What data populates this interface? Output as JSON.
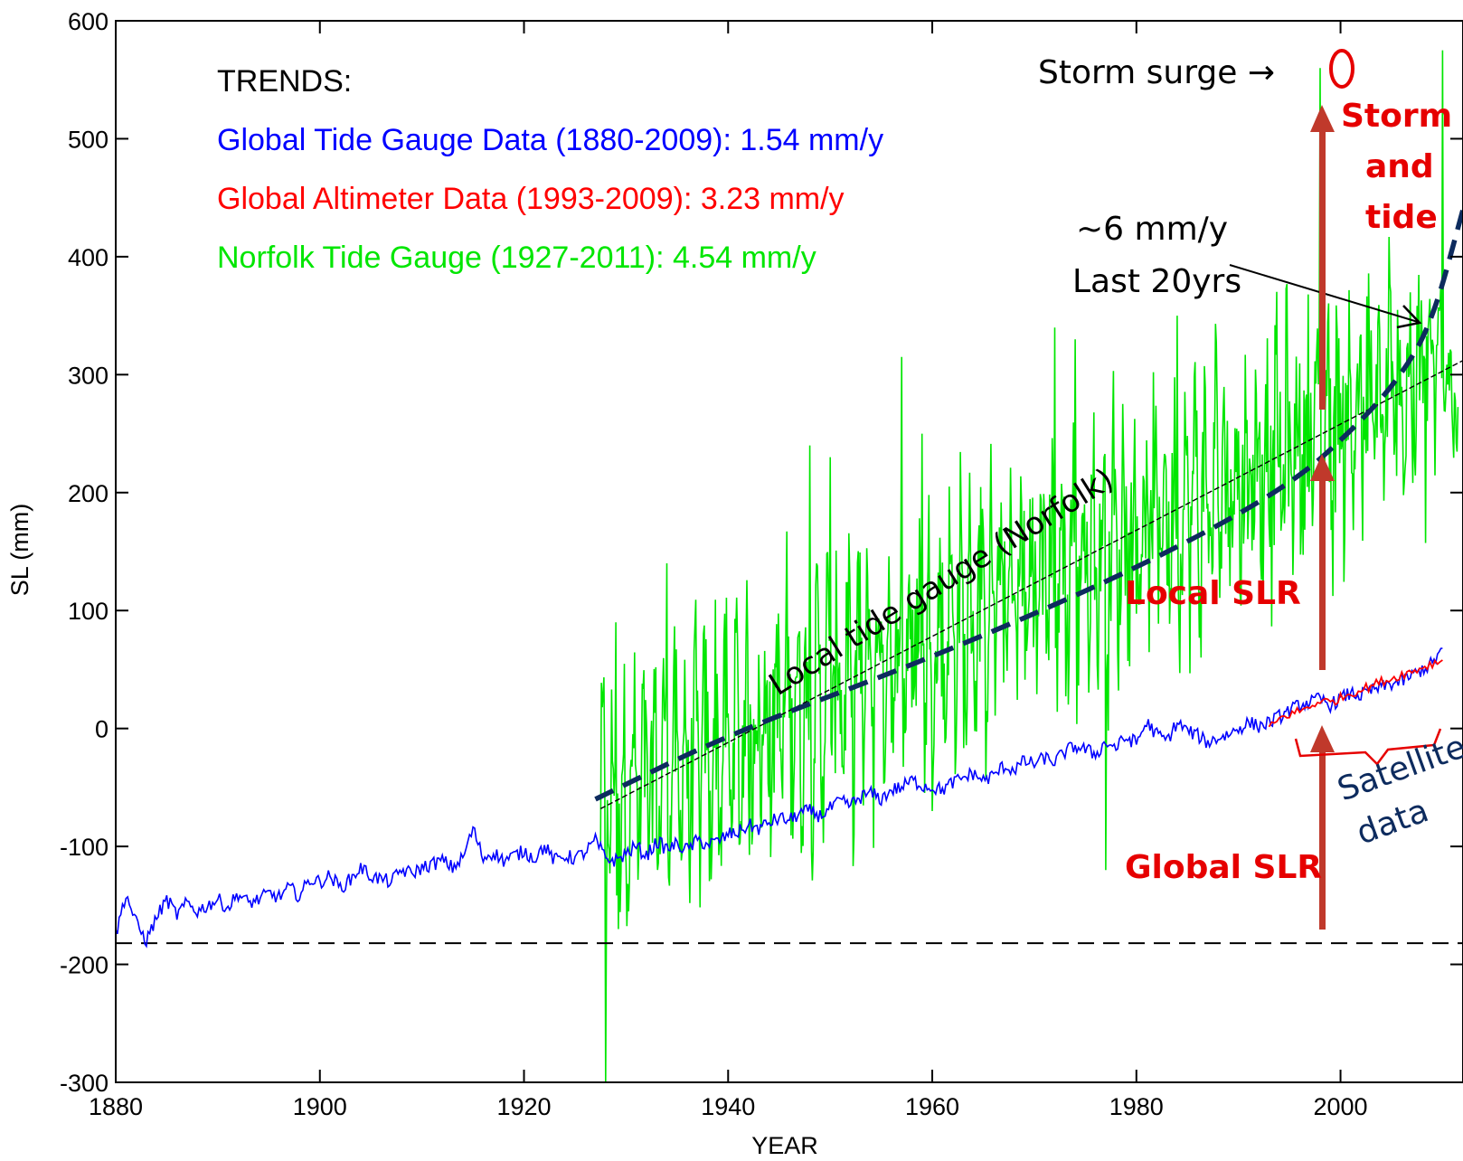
{
  "chart_data": {
    "type": "line",
    "xlabel": "YEAR",
    "ylabel": "SL (mm)",
    "xlim": [
      1880,
      2012
    ],
    "ylim": [
      -300,
      600
    ],
    "x_ticks": [
      1880,
      1900,
      1920,
      1940,
      1960,
      1980,
      2000
    ],
    "y_ticks": [
      600,
      500,
      400,
      300,
      200,
      100,
      0,
      -100,
      -200,
      -300
    ],
    "grid": false,
    "legend_title": "TRENDS:",
    "legend_position": "top-left",
    "series": [
      {
        "name": "Global Tide Gauge Data (1880-2009): 1.54 mm/y",
        "color": "#0000ff",
        "points": [
          [
            1880,
            -175
          ],
          [
            1881,
            -140
          ],
          [
            1882,
            -165
          ],
          [
            1883,
            -180
          ],
          [
            1884,
            -160
          ],
          [
            1885,
            -145
          ],
          [
            1886,
            -158
          ],
          [
            1887,
            -148
          ],
          [
            1888,
            -155
          ],
          [
            1889,
            -150
          ],
          [
            1890,
            -145
          ],
          [
            1891,
            -152
          ],
          [
            1892,
            -140
          ],
          [
            1893,
            -148
          ],
          [
            1894,
            -145
          ],
          [
            1895,
            -140
          ],
          [
            1896,
            -143
          ],
          [
            1897,
            -135
          ],
          [
            1898,
            -142
          ],
          [
            1899,
            -128
          ],
          [
            1900,
            -130
          ],
          [
            1901,
            -125
          ],
          [
            1902,
            -135
          ],
          [
            1903,
            -128
          ],
          [
            1904,
            -118
          ],
          [
            1905,
            -125
          ],
          [
            1906,
            -128
          ],
          [
            1907,
            -130
          ],
          [
            1908,
            -120
          ],
          [
            1909,
            -123
          ],
          [
            1910,
            -118
          ],
          [
            1911,
            -115
          ],
          [
            1912,
            -112
          ],
          [
            1913,
            -118
          ],
          [
            1914,
            -110
          ],
          [
            1915,
            -85
          ],
          [
            1916,
            -110
          ],
          [
            1917,
            -105
          ],
          [
            1918,
            -112
          ],
          [
            1919,
            -108
          ],
          [
            1920,
            -104
          ],
          [
            1921,
            -110
          ],
          [
            1922,
            -100
          ],
          [
            1923,
            -112
          ],
          [
            1924,
            -108
          ],
          [
            1925,
            -110
          ],
          [
            1926,
            -105
          ],
          [
            1927,
            -95
          ],
          [
            1928,
            -110
          ],
          [
            1929,
            -112
          ],
          [
            1930,
            -106
          ],
          [
            1931,
            -100
          ],
          [
            1932,
            -108
          ],
          [
            1933,
            -96
          ],
          [
            1934,
            -102
          ],
          [
            1935,
            -98
          ],
          [
            1936,
            -103
          ],
          [
            1937,
            -95
          ],
          [
            1938,
            -98
          ],
          [
            1939,
            -96
          ],
          [
            1940,
            -90
          ],
          [
            1941,
            -88
          ],
          [
            1942,
            -82
          ],
          [
            1943,
            -85
          ],
          [
            1944,
            -80
          ],
          [
            1945,
            -76
          ],
          [
            1946,
            -78
          ],
          [
            1947,
            -72
          ],
          [
            1948,
            -70
          ],
          [
            1949,
            -74
          ],
          [
            1950,
            -68
          ],
          [
            1951,
            -62
          ],
          [
            1952,
            -65
          ],
          [
            1953,
            -58
          ],
          [
            1954,
            -55
          ],
          [
            1955,
            -60
          ],
          [
            1956,
            -52
          ],
          [
            1957,
            -50
          ],
          [
            1958,
            -44
          ],
          [
            1959,
            -48
          ],
          [
            1960,
            -50
          ],
          [
            1961,
            -52
          ],
          [
            1962,
            -46
          ],
          [
            1963,
            -42
          ],
          [
            1964,
            -38
          ],
          [
            1965,
            -44
          ],
          [
            1966,
            -40
          ],
          [
            1967,
            -32
          ],
          [
            1968,
            -35
          ],
          [
            1969,
            -28
          ],
          [
            1970,
            -30
          ],
          [
            1971,
            -25
          ],
          [
            1972,
            -28
          ],
          [
            1973,
            -20
          ],
          [
            1974,
            -15
          ],
          [
            1975,
            -18
          ],
          [
            1976,
            -22
          ],
          [
            1977,
            -12
          ],
          [
            1978,
            -16
          ],
          [
            1979,
            -8
          ],
          [
            1980,
            -12
          ],
          [
            1981,
            5
          ],
          [
            1982,
            -5
          ],
          [
            1983,
            -10
          ],
          [
            1984,
            5
          ],
          [
            1985,
            -2
          ],
          [
            1986,
            -6
          ],
          [
            1987,
            -12
          ],
          [
            1988,
            -8
          ],
          [
            1989,
            -5
          ],
          [
            1990,
            0
          ],
          [
            1991,
            5
          ],
          [
            1992,
            2
          ],
          [
            1993,
            5
          ],
          [
            1994,
            10
          ],
          [
            1995,
            15
          ],
          [
            1996,
            20
          ],
          [
            1997,
            22
          ],
          [
            1998,
            25
          ],
          [
            1999,
            20
          ],
          [
            2000,
            25
          ],
          [
            2001,
            30
          ],
          [
            2002,
            28
          ],
          [
            2003,
            32
          ],
          [
            2004,
            35
          ],
          [
            2005,
            38
          ],
          [
            2006,
            40
          ],
          [
            2007,
            45
          ],
          [
            2008,
            50
          ],
          [
            2009,
            55
          ],
          [
            2010,
            68
          ]
        ]
      },
      {
        "name": "Global Altimeter Data (1993-2009): 3.23 mm/y",
        "color": "#ff0000",
        "points": [
          [
            1993,
            0
          ],
          [
            1994,
            8
          ],
          [
            1995,
            12
          ],
          [
            1996,
            15
          ],
          [
            1997,
            18
          ],
          [
            1998,
            24
          ],
          [
            1999,
            22
          ],
          [
            2000,
            26
          ],
          [
            2001,
            30
          ],
          [
            2002,
            33
          ],
          [
            2003,
            36
          ],
          [
            2004,
            40
          ],
          [
            2005,
            42
          ],
          [
            2006,
            46
          ],
          [
            2007,
            48
          ],
          [
            2008,
            52
          ],
          [
            2009,
            55
          ],
          [
            2010,
            58
          ]
        ]
      },
      {
        "name": "Norfolk Tide Gauge (1927-2011): 4.54 mm/y",
        "color": "#00e600",
        "x_start": 1927.5,
        "x_end": 2011.5,
        "trend_mm_per_year": 4.54,
        "annual_mean_start": -70,
        "annual_mean_end": 310,
        "peaks": [
          [
            1928,
            -300
          ],
          [
            1929,
            90
          ],
          [
            1934,
            140
          ],
          [
            1948,
            240
          ],
          [
            1950,
            230
          ],
          [
            1957,
            315
          ],
          [
            1959,
            250
          ],
          [
            1960,
            -70
          ],
          [
            1972,
            340
          ],
          [
            1974,
            330
          ],
          [
            1977,
            -120
          ],
          [
            1984,
            350
          ],
          [
            1998,
            560
          ],
          [
            2008,
            330
          ],
          [
            2010,
            575
          ]
        ]
      }
    ],
    "reference_lines": [
      {
        "style": "dashed",
        "color": "#000000",
        "y": -182,
        "x_range": [
          1880,
          2012
        ]
      },
      {
        "style": "thin-dashed",
        "color": "#000000",
        "points": [
          [
            1927.5,
            -68
          ],
          [
            2012,
            312
          ]
        ]
      },
      {
        "style": "thick-dashed",
        "color": "#0d2b5e",
        "points": [
          [
            1927,
            -60
          ],
          [
            1940,
            -5
          ],
          [
            1960,
            60
          ],
          [
            1980,
            135
          ],
          [
            1995,
            205
          ],
          [
            2002,
            260
          ],
          [
            2006,
            300
          ],
          [
            2009,
            345
          ],
          [
            2012,
            440
          ]
        ]
      }
    ],
    "annotations": {
      "storm_surge": "Storm surge →",
      "storm_and_tide": [
        "Storm",
        "and",
        "tide"
      ],
      "recent_rate": [
        "~6 mm/y",
        "Last 20yrs"
      ],
      "local_curve_label": "Local tide gauge (Norfolk)",
      "local_slr": "Local SLR",
      "global_slr": "Global SLR",
      "satellite": [
        "Satellite",
        "data"
      ]
    },
    "colors": {
      "annotation_red": "#e60000",
      "annotation_navy": "#0d2b5e"
    }
  }
}
